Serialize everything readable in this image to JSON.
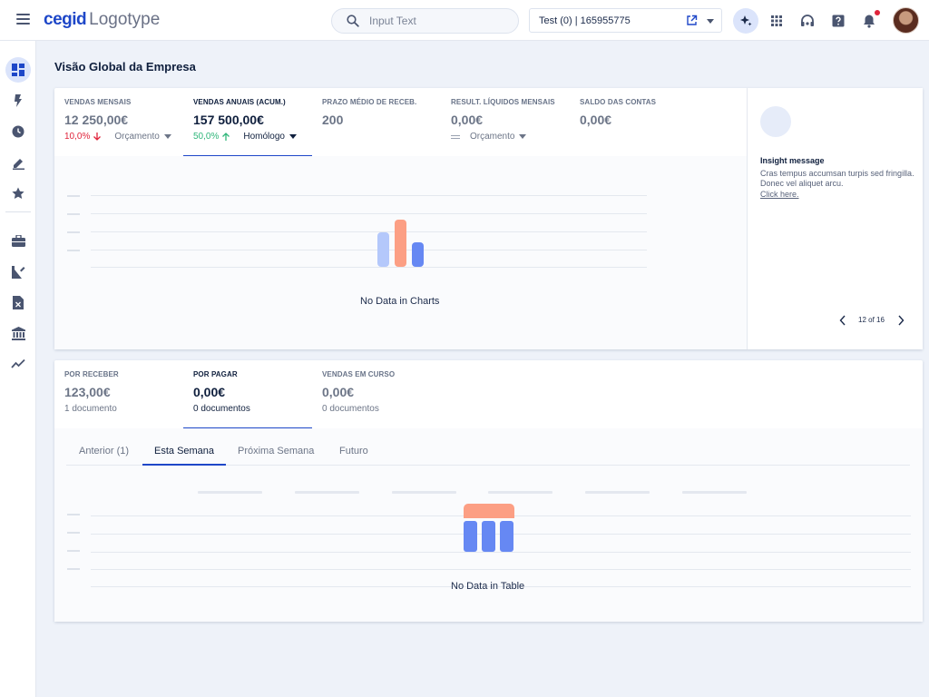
{
  "header": {
    "logo_brand": "cegid",
    "logo_type": "Logotype",
    "search_placeholder": "Input Text",
    "company_selector": "Test (0) | 165955775"
  },
  "page": {
    "title": "Visão Global da Empresa"
  },
  "kpis_top": [
    {
      "label": "VENDAS MENSAIS",
      "value": "12 250,00€",
      "pct": "10,0%",
      "trend": "down",
      "dropdown": "Orçamento"
    },
    {
      "label": "VENDAS ANUAIS (ACUM.)",
      "value": "157 500,00€",
      "pct": "50,0%",
      "trend": "up",
      "dropdown": "Homólogo"
    },
    {
      "label": "PRAZO MÉDIO DE RECEB.",
      "value": "200"
    },
    {
      "label": "RESULT. LÍQUIDOS MENSAIS",
      "value": "0,00€",
      "trend": "equal",
      "dropdown": "Orçamento"
    },
    {
      "label": "SALDO DAS CONTAS",
      "value": "0,00€"
    }
  ],
  "chart_empty": "No Data in Charts",
  "insight": {
    "title": "Insight message",
    "body": "Cras tempus accumsan turpis sed fringilla. Donec vel aliquet arcu.",
    "link": "Click here.",
    "pager": "12 of 16"
  },
  "kpis_bottom": [
    {
      "label": "POR RECEBER",
      "value": "123,00€",
      "sub": "1 documento"
    },
    {
      "label": "POR PAGAR",
      "value": "0,00€",
      "sub": "0 documentos"
    },
    {
      "label": "VENDAS EM CURSO",
      "value": "0,00€",
      "sub": "0 documentos"
    }
  ],
  "tabs": [
    "Anterior (1)",
    "Esta Semana",
    "Próxima Semana",
    "Futuro"
  ],
  "table_empty": "No Data in Table",
  "colors": {
    "accent": "#1e47c8",
    "negative": "#e0243b",
    "positive": "#2fb67a",
    "illustration_salmon": "#fc9f84",
    "illustration_blue": "#6688f3",
    "illustration_light_blue": "#b4c8fb"
  }
}
